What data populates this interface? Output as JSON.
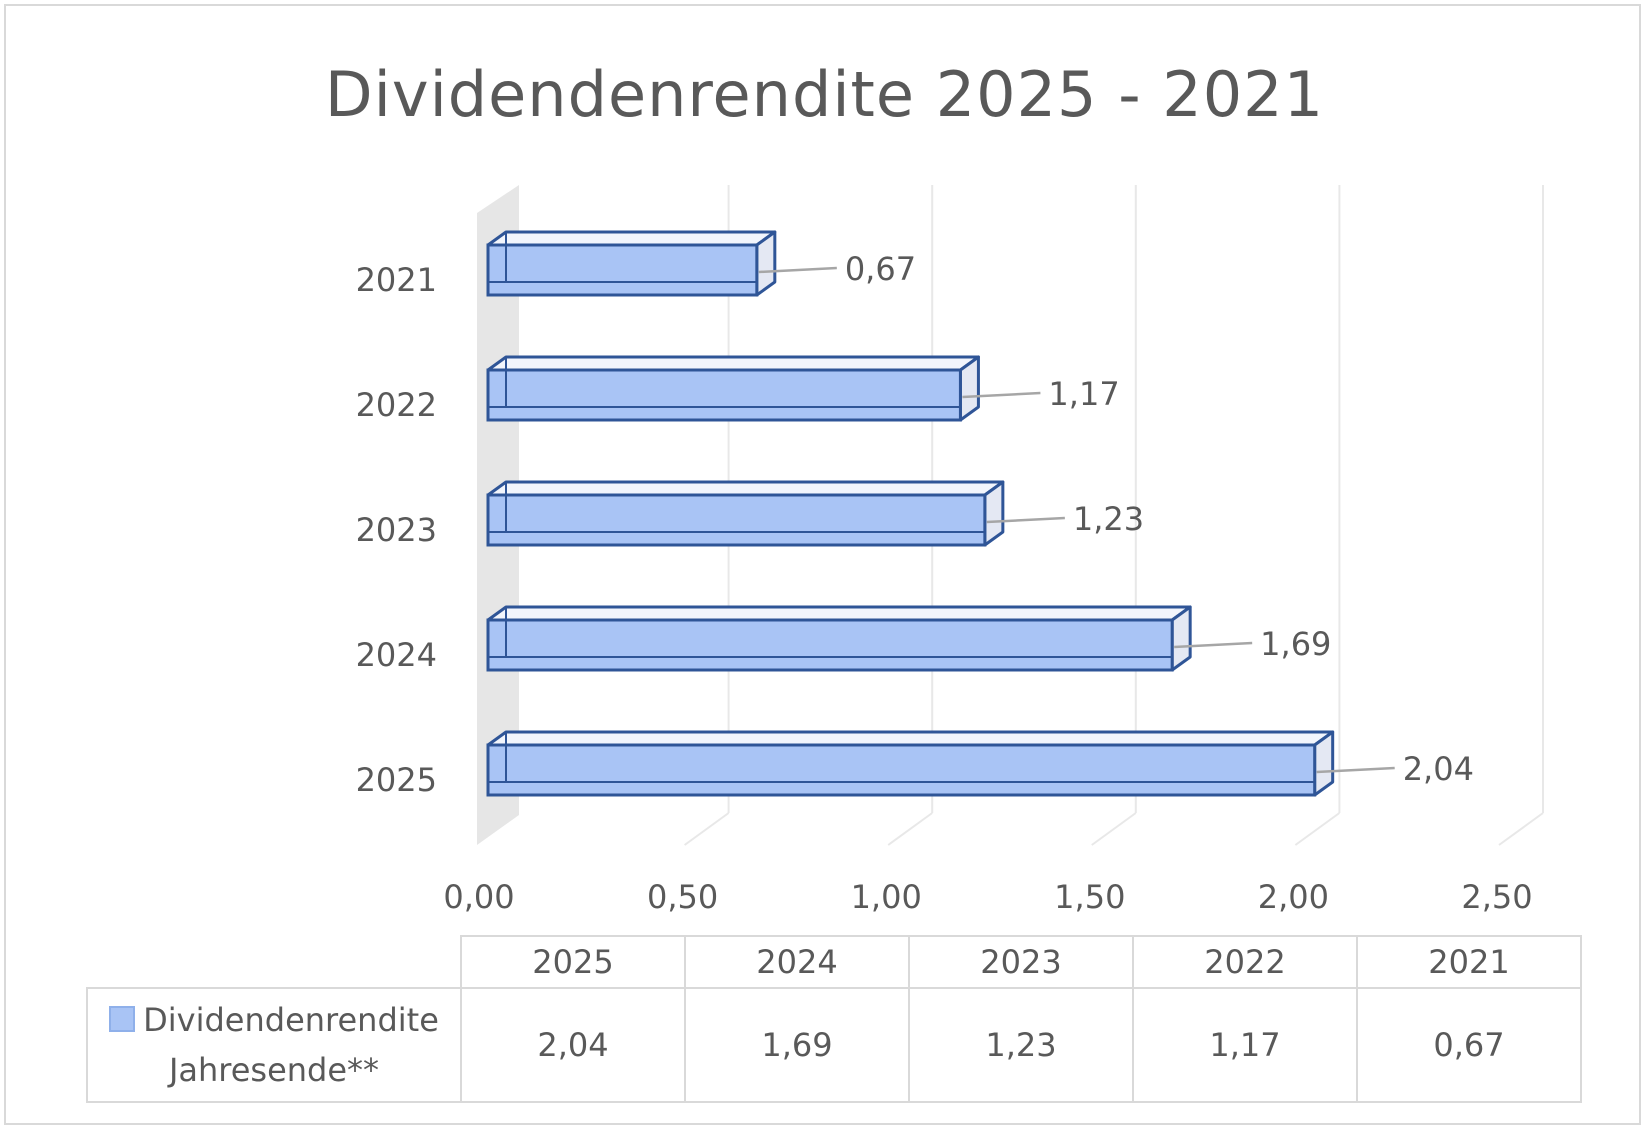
{
  "chart_data": {
    "type": "bar",
    "orientation": "horizontal",
    "title": "Dividendenrendite 2025 - 2021",
    "categories": [
      "2025",
      "2024",
      "2023",
      "2022",
      "2021"
    ],
    "series": [
      {
        "name": "Dividendenrendite Jahresende**",
        "values": [
          2.04,
          1.69,
          1.23,
          1.17,
          0.67
        ]
      }
    ],
    "value_labels": [
      "2,04",
      "1,69",
      "1,23",
      "1,17",
      "0,67"
    ],
    "xlim": [
      0,
      2.5
    ],
    "x_ticks": [
      0,
      0.5,
      1.0,
      1.5,
      2.0,
      2.5
    ],
    "x_tick_labels": [
      "0,00",
      "0,50",
      "1,00",
      "1,50",
      "2,00",
      "2,50"
    ],
    "grid": true,
    "style": "3d",
    "bar_color": "#a9c4f5",
    "bar_edge_color": "#2f5597",
    "data_table": {
      "legend_lines": [
        "Dividendenrendite",
        "Jahresende**"
      ],
      "headers": [
        "2025",
        "2024",
        "2023",
        "2022",
        "2021"
      ],
      "values": [
        "2,04",
        "1,69",
        "1,23",
        "1,17",
        "0,67"
      ]
    }
  }
}
